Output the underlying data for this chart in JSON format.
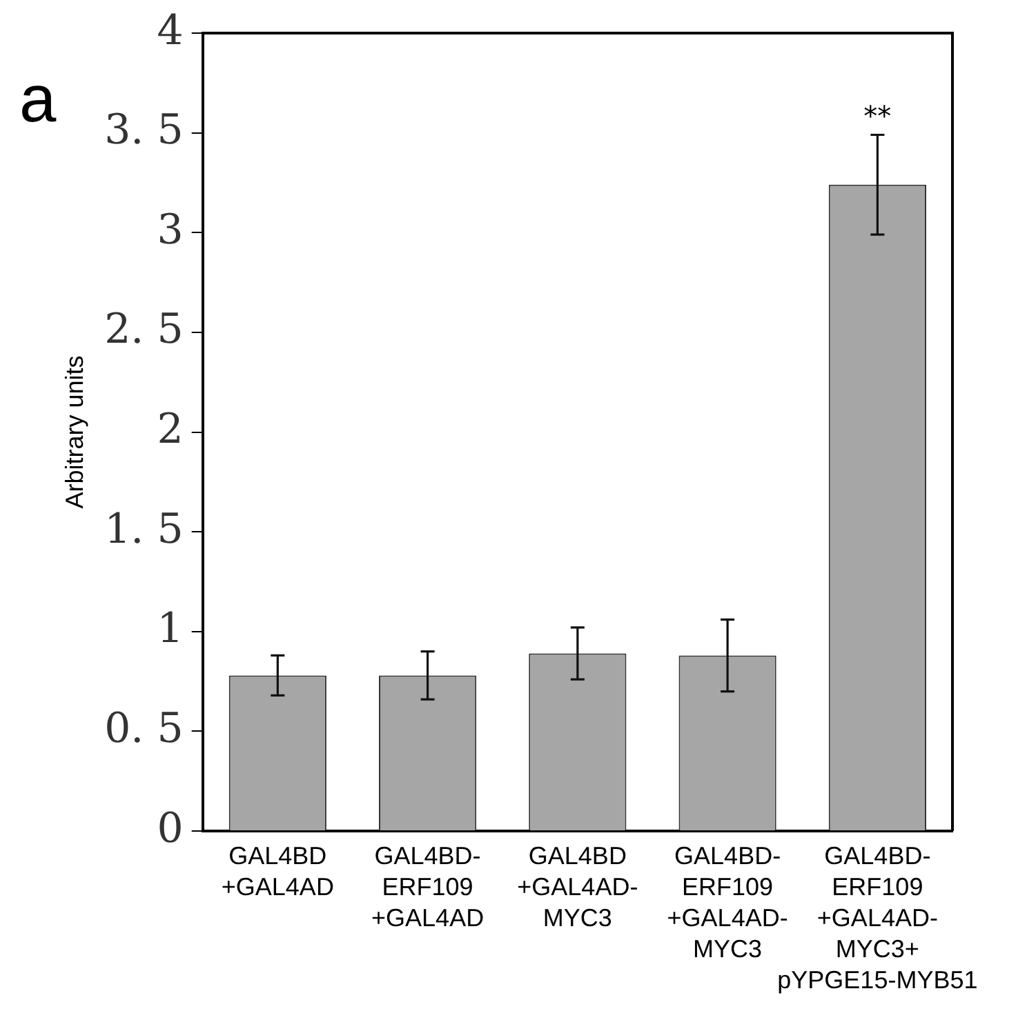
{
  "chart_data": {
    "type": "bar",
    "ylabel": "Arbitrary units",
    "categories": [
      "GAL4BD\n+GAL4AD",
      "GAL4BD-\nERF109\n+GAL4AD",
      "GAL4BD\n+GAL4AD-\nMYC3",
      "GAL4BD-\nERF109\n+GAL4AD-\nMYC3",
      "GAL4BD-\nERF109\n+GAL4AD-\nMYC3+\npYPGE15-MYB51"
    ],
    "values": [
      0.78,
      0.78,
      0.89,
      0.88,
      3.24
    ],
    "errors": [
      0.1,
      0.12,
      0.13,
      0.18,
      0.25
    ],
    "color": "#a6a6a6",
    "ylim": [
      0,
      4
    ],
    "yticks": [
      0,
      {
        "value": 0.5,
        "label": "0. 5"
      },
      1,
      {
        "value": 1.5,
        "label": "1. 5"
      },
      2,
      {
        "value": 2.5,
        "label": "2. 5"
      },
      3,
      {
        "value": 3.5,
        "label": "3. 5"
      },
      4
    ],
    "grid": false,
    "legend": false,
    "annotations": [
      "a",
      {
        "text": "**",
        "x": "GAL4BD-\nERF109\n+GAL4AD-\nMYC3+\npYPGE15-MYB51",
        "y": 3.49
      }
    ]
  }
}
